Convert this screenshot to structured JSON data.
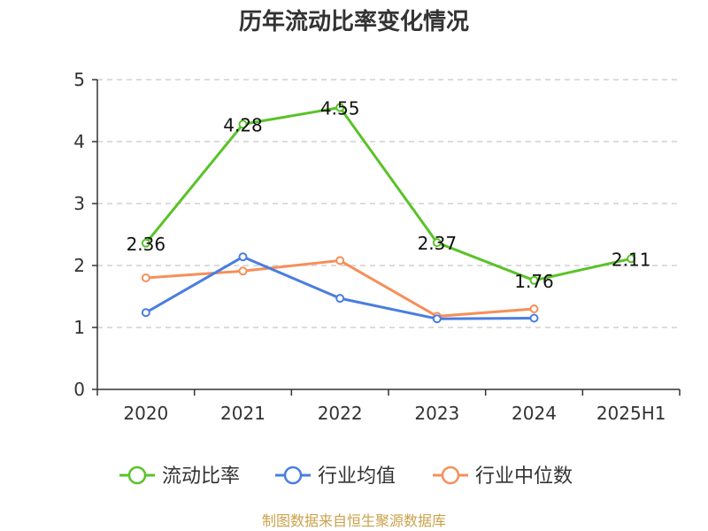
{
  "chart_data": {
    "type": "line",
    "title": "历年流动比率变化情况",
    "xlabel": "",
    "ylabel": "",
    "categories": [
      "2020",
      "2021",
      "2022",
      "2023",
      "2024",
      "2025H1"
    ],
    "ylim": [
      0,
      5
    ],
    "yticks": [
      "0",
      "1",
      "2",
      "3",
      "4",
      "5"
    ],
    "grid": true,
    "legend_position": "bottom",
    "series": [
      {
        "name": "流动比率",
        "color": "#5ac229",
        "values": [
          2.36,
          4.28,
          4.55,
          2.37,
          1.76,
          2.11
        ],
        "labels": [
          "2.36",
          "4.28",
          "4.55",
          "2.37",
          "1.76",
          "2.11"
        ]
      },
      {
        "name": "行业均值",
        "color": "#4a7de0",
        "values": [
          1.24,
          2.14,
          1.47,
          1.14,
          1.15,
          null
        ]
      },
      {
        "name": "行业中位数",
        "color": "#f58f5a",
        "values": [
          1.8,
          1.91,
          2.08,
          1.18,
          1.3,
          null
        ]
      }
    ],
    "source": "制图数据来自恒生聚源数据库"
  }
}
